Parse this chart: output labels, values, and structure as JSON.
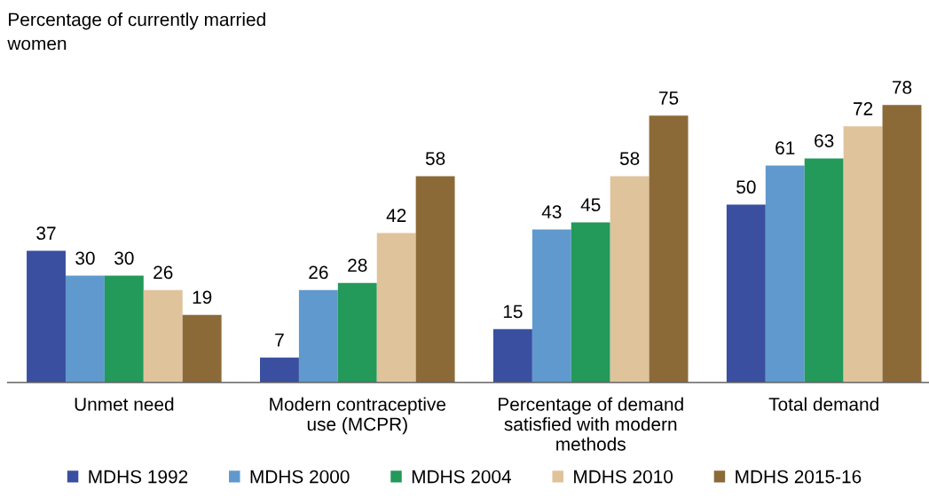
{
  "chart_data": {
    "type": "bar",
    "ylabel": "Percentage of currently married\nwomen",
    "categories": [
      "Unmet need",
      "Modern contraceptive\nuse (MCPR)",
      "Percentage of demand\nsatisfied with modern\nmethods",
      "Total demand"
    ],
    "series": [
      {
        "name": "MDHS 1992",
        "color": "#3a4fa0",
        "values": [
          37,
          7,
          15,
          50
        ]
      },
      {
        "name": "MDHS 2000",
        "color": "#6099cd",
        "values": [
          30,
          26,
          43,
          61
        ]
      },
      {
        "name": "MDHS 2004",
        "color": "#23995a",
        "values": [
          30,
          28,
          45,
          63
        ]
      },
      {
        "name": "MDHS 2010",
        "color": "#dfc39b",
        "values": [
          26,
          42,
          58,
          72
        ]
      },
      {
        "name": "MDHS 2015-16",
        "color": "#8c6a38",
        "values": [
          19,
          58,
          75,
          78
        ]
      }
    ],
    "data_labels": true,
    "legend": "bottom",
    "grid": false
  }
}
